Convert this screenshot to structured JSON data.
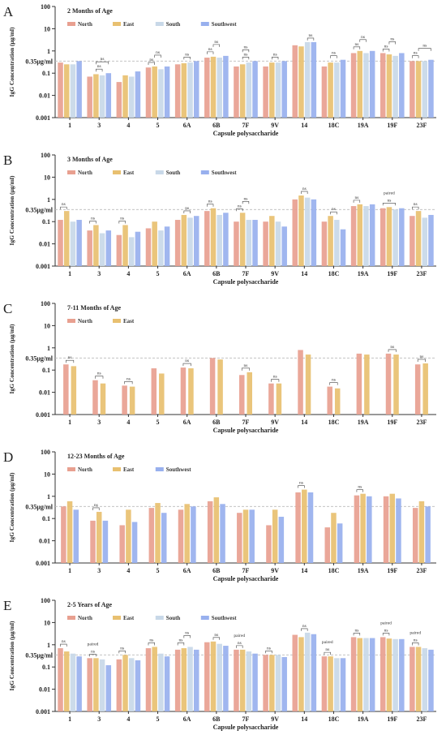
{
  "colors": {
    "North": "#e8a090",
    "East": "#e8c070",
    "South": "#c8d8e8",
    "Southwest": "#98b0ee",
    "threshold": "#bbbbbb",
    "axis": "#333333"
  },
  "chart_data": [
    {
      "type": "bar",
      "panel": "A",
      "title": "2 Months of Age",
      "ylabel": "IgG Concentration (μg/ml)",
      "xlabel": "Capsule polysaccharide",
      "yscale": "log",
      "ylim": [
        0.001,
        100
      ],
      "yticks": [
        "100",
        "10",
        "1",
        "0.1",
        "0.01",
        "0.001"
      ],
      "threshold": {
        "value": 0.35,
        "label": "0.35μg/ml"
      },
      "legend": "top-left",
      "categories": [
        "1",
        "3",
        "4",
        "5",
        "6A",
        "6B",
        "7F",
        "9V",
        "14",
        "18C",
        "19A",
        "19F",
        "23F"
      ],
      "series": [
        {
          "name": "North",
          "values": [
            0.3,
            0.07,
            0.04,
            0.18,
            0.25,
            0.5,
            0.2,
            0.2,
            1.8,
            0.2,
            0.8,
            0.8,
            0.35
          ]
        },
        {
          "name": "East",
          "values": [
            0.25,
            0.09,
            0.08,
            0.2,
            0.28,
            0.55,
            0.25,
            0.3,
            1.6,
            0.3,
            1.0,
            0.7,
            0.35
          ]
        },
        {
          "name": "South",
          "values": [
            0.25,
            0.08,
            0.07,
            0.15,
            0.3,
            0.5,
            0.3,
            0.3,
            2.5,
            0.3,
            0.8,
            0.6,
            0.35
          ]
        },
        {
          "name": "Southwest",
          "values": [
            0.35,
            0.1,
            0.12,
            0.2,
            0.35,
            0.6,
            0.35,
            0.35,
            2.5,
            0.4,
            1.0,
            0.8,
            0.4
          ]
        }
      ],
      "annotations": [
        {
          "category": "3",
          "pair": [
            1,
            2
          ],
          "level": 1,
          "label": "ns"
        },
        {
          "category": "3",
          "pair": [
            1,
            3
          ],
          "level": 2,
          "label": "ns"
        },
        {
          "category": "5",
          "pair": [
            0,
            1
          ],
          "level": 1,
          "label": "ns"
        },
        {
          "category": "5",
          "pair": [
            1,
            2
          ],
          "level": 2,
          "label": "ns"
        },
        {
          "category": "6A",
          "pair": [
            1,
            2
          ],
          "level": 1,
          "label": "ns"
        },
        {
          "category": "6B",
          "pair": [
            0,
            1
          ],
          "level": 1,
          "label": "ns"
        },
        {
          "category": "6B",
          "pair": [
            1,
            2
          ],
          "level": 2,
          "label": "ns"
        },
        {
          "category": "7F",
          "pair": [
            1,
            2
          ],
          "level": 1,
          "label": "ns"
        },
        {
          "category": "7F",
          "pair": [
            1,
            2
          ],
          "level": 2,
          "label": "ns"
        },
        {
          "category": "9V",
          "pair": [
            1,
            2
          ],
          "level": 1,
          "label": "ns"
        },
        {
          "category": "14",
          "pair": [
            2,
            3
          ],
          "level": 1,
          "label": "ns"
        },
        {
          "category": "18C",
          "pair": [
            1,
            2
          ],
          "level": 1,
          "label": "ns"
        },
        {
          "category": "19A",
          "pair": [
            0,
            1
          ],
          "level": 1,
          "label": "ns"
        },
        {
          "category": "19A",
          "pair": [
            1,
            2
          ],
          "level": 2,
          "label": "ns"
        },
        {
          "category": "19F",
          "pair": [
            0,
            1
          ],
          "level": 1,
          "label": "ns"
        },
        {
          "category": "19F",
          "pair": [
            1,
            2
          ],
          "level": 2,
          "label": "ns"
        },
        {
          "category": "23F",
          "pair": [
            0,
            1
          ],
          "level": 1,
          "label": "ns"
        },
        {
          "category": "23F",
          "pair": [
            1,
            3
          ],
          "level": 2,
          "label": "ns"
        }
      ]
    },
    {
      "type": "bar",
      "panel": "B",
      "title": "3 Months of Age",
      "ylabel": "IgG Concentration (μg/ml)",
      "xlabel": "Capsule polysaccharide",
      "yscale": "log",
      "ylim": [
        0.001,
        100
      ],
      "yticks": [
        "100",
        "10",
        "1",
        "0.1",
        "0.01",
        "0.001"
      ],
      "threshold": {
        "value": 0.35,
        "label": "0.35μg/ml"
      },
      "legend": "top-left",
      "categories": [
        "1",
        "3",
        "4",
        "5",
        "6A",
        "6B",
        "7F",
        "9V",
        "14",
        "18C",
        "19A",
        "19F",
        "23F"
      ],
      "series": [
        {
          "name": "North",
          "values": [
            0.12,
            0.04,
            0.025,
            0.05,
            0.12,
            0.3,
            0.1,
            0.1,
            1.0,
            0.1,
            0.5,
            0.4,
            0.18
          ]
        },
        {
          "name": "East",
          "values": [
            0.3,
            0.07,
            0.07,
            0.1,
            0.2,
            0.4,
            0.25,
            0.18,
            1.5,
            0.18,
            0.6,
            0.45,
            0.3
          ]
        },
        {
          "name": "South",
          "values": [
            0.1,
            0.03,
            0.02,
            0.04,
            0.15,
            0.2,
            0.12,
            0.1,
            1.2,
            0.12,
            0.5,
            0.35,
            0.15
          ]
        },
        {
          "name": "Southwest",
          "values": [
            0.12,
            0.04,
            0.035,
            0.06,
            0.18,
            0.25,
            0.12,
            0.06,
            1.0,
            0.045,
            0.6,
            0.4,
            0.2
          ]
        }
      ],
      "annotations": [
        {
          "category": "1",
          "pair": [
            0,
            1
          ],
          "level": 1,
          "label": "ns"
        },
        {
          "category": "3",
          "pair": [
            0,
            1
          ],
          "level": 1,
          "label": "ns"
        },
        {
          "category": "4",
          "pair": [
            0,
            1
          ],
          "level": 1,
          "label": "ns"
        },
        {
          "category": "6A",
          "pair": [
            1,
            2
          ],
          "level": 1,
          "label": "ns"
        },
        {
          "category": "6B",
          "pair": [
            0,
            1
          ],
          "level": 1,
          "label": "ns"
        },
        {
          "category": "7F",
          "pair": [
            0,
            1
          ],
          "level": 1,
          "label": "ns"
        },
        {
          "category": "7F",
          "pair": [
            1,
            2
          ],
          "level": 2,
          "label": "ns"
        },
        {
          "category": "14",
          "pair": [
            1,
            2
          ],
          "level": 1,
          "label": "ns"
        },
        {
          "category": "18C",
          "pair": [
            1,
            2
          ],
          "level": 1,
          "label": "ns"
        },
        {
          "category": "19A",
          "pair": [
            0,
            1
          ],
          "level": 1,
          "label": "ns"
        },
        {
          "category": "19F",
          "pair": [
            0,
            2
          ],
          "level": 1,
          "label": "ns"
        },
        {
          "category": "19F",
          "pair": [
            0,
            2
          ],
          "level": 2,
          "label": "paired"
        },
        {
          "category": "23F",
          "pair": [
            0,
            1
          ],
          "level": 1,
          "label": "ns"
        }
      ]
    },
    {
      "type": "bar",
      "panel": "C",
      "title": "7-11 Months of Age",
      "ylabel": "IgG Concentration (μg/ml)",
      "xlabel": "Capsule polysaccharide",
      "yscale": "log",
      "ylim": [
        0.001,
        100
      ],
      "yticks": [
        "100",
        "10",
        "1",
        "0.1",
        "0.01",
        "0.001"
      ],
      "threshold": {
        "value": 0.35,
        "label": "0.35μg/ml"
      },
      "legend": "top-left",
      "categories": [
        "1",
        "3",
        "4",
        "5",
        "6A",
        "6B",
        "7F",
        "9V",
        "14",
        "18C",
        "19A",
        "19F",
        "23F"
      ],
      "series": [
        {
          "name": "North",
          "values": [
            0.18,
            0.035,
            0.02,
            0.12,
            0.13,
            0.35,
            0.06,
            0.025,
            0.8,
            0.018,
            0.55,
            0.55,
            0.18
          ]
        },
        {
          "name": "East",
          "values": [
            0.15,
            0.025,
            0.018,
            0.07,
            0.12,
            0.3,
            0.08,
            0.025,
            0.5,
            0.015,
            0.5,
            0.5,
            0.2
          ]
        }
      ],
      "annotations": [
        {
          "category": "1",
          "pair": [
            0,
            1
          ],
          "level": 1,
          "label": "ns"
        },
        {
          "category": "3",
          "pair": [
            0,
            1
          ],
          "level": 1,
          "label": "ns"
        },
        {
          "category": "4",
          "pair": [
            0,
            1
          ],
          "level": 1,
          "label": "ns"
        },
        {
          "category": "6A",
          "pair": [
            0,
            1
          ],
          "level": 1,
          "label": "ns"
        },
        {
          "category": "7F",
          "pair": [
            0,
            1
          ],
          "level": 1,
          "label": "ns"
        },
        {
          "category": "9V",
          "pair": [
            0,
            1
          ],
          "level": 1,
          "label": "ns"
        },
        {
          "category": "18C",
          "pair": [
            0,
            1
          ],
          "level": 1,
          "label": "ns"
        },
        {
          "category": "19F",
          "pair": [
            0,
            1
          ],
          "level": 1,
          "label": "ns"
        },
        {
          "category": "23F",
          "pair": [
            0,
            1
          ],
          "level": 1,
          "label": "ns"
        }
      ]
    },
    {
      "type": "bar",
      "panel": "D",
      "title": "12-23 Months of Age",
      "ylabel": "IgG Concentration (μg/ml)",
      "xlabel": "Capsule polysaccharide",
      "yscale": "log",
      "ylim": [
        0.001,
        100
      ],
      "yticks": [
        "100",
        "10",
        "1",
        "0.1",
        "0.01",
        "0.001"
      ],
      "threshold": {
        "value": 0.35,
        "label": "0.35μg/ml"
      },
      "legend": "top-left",
      "categories": [
        "1",
        "3",
        "4",
        "5",
        "6A",
        "6B",
        "7F",
        "9V",
        "14",
        "18C",
        "19A",
        "19F",
        "23F"
      ],
      "series": [
        {
          "name": "North",
          "values": [
            0.35,
            0.08,
            0.05,
            0.3,
            0.25,
            0.6,
            0.18,
            0.05,
            1.5,
            0.04,
            1.1,
            1.0,
            0.3
          ]
        },
        {
          "name": "East",
          "values": [
            0.6,
            0.2,
            0.25,
            0.5,
            0.45,
            0.9,
            0.25,
            0.25,
            2.0,
            0.18,
            1.3,
            1.3,
            0.6
          ]
        },
        {
          "name": "Southwest",
          "values": [
            0.25,
            0.08,
            0.07,
            0.18,
            0.35,
            0.45,
            0.25,
            0.12,
            1.5,
            0.06,
            1.0,
            0.8,
            0.35
          ]
        }
      ],
      "annotations": [
        {
          "category": "3",
          "pair": [
            0,
            1
          ],
          "level": 1,
          "label": "ns"
        },
        {
          "category": "14",
          "pair": [
            0,
            1
          ],
          "level": 1,
          "label": "ns"
        },
        {
          "category": "19A",
          "pair": [
            0,
            1
          ],
          "level": 1,
          "label": "ns"
        }
      ]
    },
    {
      "type": "bar",
      "panel": "E",
      "title": "2-5 Years of Age",
      "ylabel": "IgG Concentration (μg/ml)",
      "xlabel": "Capsule polysaccharide",
      "yscale": "log",
      "ylim": [
        0.001,
        100
      ],
      "yticks": [
        "100",
        "10",
        "1",
        "0.1",
        "0.01",
        "0.001"
      ],
      "threshold": {
        "value": 0.35,
        "label": "0.35μg/ml"
      },
      "legend": "top-left",
      "categories": [
        "1",
        "3",
        "4",
        "5",
        "6A",
        "6B",
        "7F",
        "9V",
        "14",
        "18C",
        "19A",
        "19F",
        "23F"
      ],
      "series": [
        {
          "name": "North",
          "values": [
            0.7,
            0.25,
            0.22,
            0.7,
            0.6,
            1.3,
            0.6,
            0.35,
            2.8,
            0.3,
            2.2,
            2.2,
            0.8
          ]
        },
        {
          "name": "East",
          "values": [
            0.5,
            0.25,
            0.35,
            0.8,
            0.7,
            1.4,
            0.6,
            0.35,
            2.2,
            0.3,
            2.0,
            1.9,
            0.8
          ]
        },
        {
          "name": "South",
          "values": [
            0.4,
            0.22,
            0.25,
            0.4,
            0.8,
            1.1,
            0.5,
            0.35,
            3.5,
            0.25,
            2.0,
            1.8,
            0.7
          ]
        },
        {
          "name": "Southwest",
          "values": [
            0.3,
            0.12,
            0.2,
            0.3,
            0.6,
            0.9,
            0.4,
            0.28,
            3.0,
            0.25,
            2.0,
            1.8,
            0.6
          ]
        }
      ],
      "annotations": [
        {
          "category": "1",
          "pair": [
            0,
            1
          ],
          "level": 1,
          "label": "ns"
        },
        {
          "category": "3",
          "pair": [
            0,
            1
          ],
          "level": 1,
          "label": "ns"
        },
        {
          "category": "3",
          "pair": [
            0,
            1
          ],
          "level": 2,
          "label": "paired"
        },
        {
          "category": "4",
          "pair": [
            0,
            1
          ],
          "level": 1,
          "label": "ns"
        },
        {
          "category": "5",
          "pair": [
            0,
            1
          ],
          "level": 1,
          "label": "ns"
        },
        {
          "category": "6A",
          "pair": [
            0,
            1
          ],
          "level": 1,
          "label": "ns"
        },
        {
          "category": "6A",
          "pair": [
            1,
            2
          ],
          "level": 2,
          "label": "ns"
        },
        {
          "category": "6B",
          "pair": [
            1,
            2
          ],
          "level": 1,
          "label": "ns"
        },
        {
          "category": "7F",
          "pair": [
            0,
            1
          ],
          "level": 1,
          "label": "ns"
        },
        {
          "category": "7F",
          "pair": [
            0,
            1
          ],
          "level": 2,
          "label": "paired"
        },
        {
          "category": "9V",
          "pair": [
            0,
            1
          ],
          "level": 1,
          "label": "ns"
        },
        {
          "category": "14",
          "pair": [
            1,
            2
          ],
          "level": 1,
          "label": "ns"
        },
        {
          "category": "18C",
          "pair": [
            0,
            1
          ],
          "level": 1,
          "label": "ns"
        },
        {
          "category": "18C",
          "pair": [
            0,
            1
          ],
          "level": 2,
          "label": "paired"
        },
        {
          "category": "19A",
          "pair": [
            0,
            1
          ],
          "level": 1,
          "label": "ns"
        },
        {
          "category": "19F",
          "pair": [
            0,
            1
          ],
          "level": 1,
          "label": "ns"
        },
        {
          "category": "19F",
          "pair": [
            0,
            1
          ],
          "level": 2,
          "label": "paired"
        },
        {
          "category": "23F",
          "pair": [
            0,
            1
          ],
          "level": 1,
          "label": "ns"
        },
        {
          "category": "23F",
          "pair": [
            0,
            1
          ],
          "level": 2,
          "label": "paired"
        }
      ]
    }
  ],
  "panel_letters": [
    "A",
    "B",
    "C",
    "D",
    "E"
  ]
}
